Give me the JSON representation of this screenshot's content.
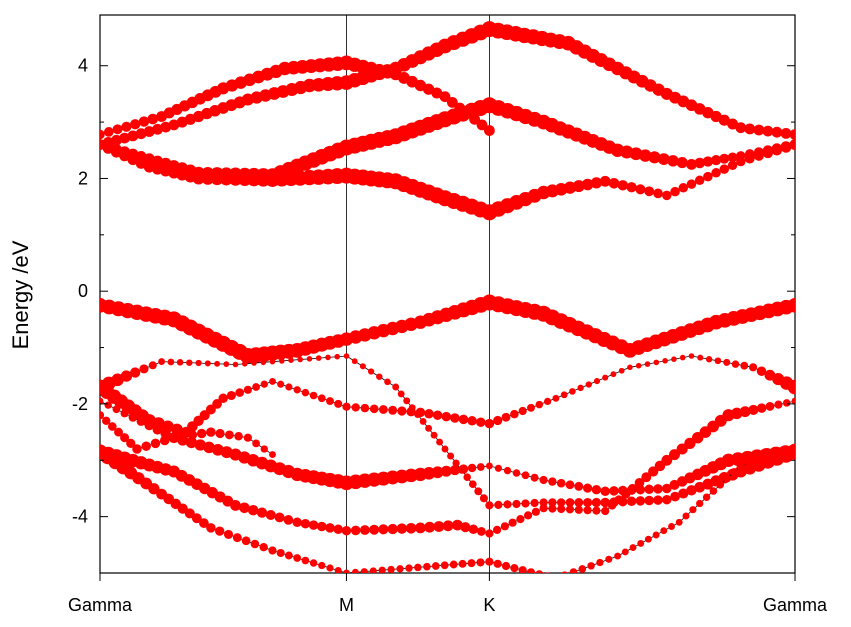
{
  "chart_data": {
    "type": "scatter",
    "title": "",
    "xlabel": "",
    "ylabel": "Energy /eV",
    "ylim": [
      -5,
      4.9
    ],
    "xlim": [
      0,
      2.82
    ],
    "y_ticks": [
      4,
      2,
      0,
      -2,
      -4
    ],
    "y_tick_labels": [
      "4",
      "2",
      "0",
      "-2",
      "-4"
    ],
    "x_ticks": [
      0,
      1.0,
      1.58,
      2.82
    ],
    "x_tick_labels": [
      "Gamma",
      "M",
      "K",
      "Gamma"
    ],
    "point_color": "#ff0000",
    "line_color": "#000000",
    "grid": false,
    "series": [
      {
        "label": "c1",
        "points": [
          [
            0,
            2.78
          ],
          [
            0.25,
            3.1
          ],
          [
            0.5,
            3.6
          ],
          [
            0.75,
            3.95
          ],
          [
            1.0,
            4.05
          ],
          [
            1.2,
            3.85
          ],
          [
            1.4,
            3.45
          ],
          [
            1.58,
            2.85
          ]
        ],
        "weights": [
          0.5,
          0.6,
          0.7,
          0.8,
          0.9,
          0.7,
          0.6,
          0.6
        ]
      },
      {
        "label": "c2",
        "points": [
          [
            0,
            2.6
          ],
          [
            0.3,
            2.95
          ],
          [
            0.6,
            3.4
          ],
          [
            0.85,
            3.65
          ],
          [
            1.0,
            3.7
          ],
          [
            1.2,
            3.95
          ],
          [
            1.4,
            4.35
          ],
          [
            1.58,
            4.65
          ],
          [
            1.9,
            4.4
          ],
          [
            2.3,
            3.5
          ],
          [
            2.6,
            2.9
          ],
          [
            2.82,
            2.78
          ]
        ],
        "weights": [
          0.6,
          0.6,
          0.7,
          0.8,
          0.9,
          0.8,
          0.9,
          1.0,
          0.9,
          0.7,
          0.6,
          0.6
        ]
      },
      {
        "label": "c3",
        "points": [
          [
            0,
            2.6
          ],
          [
            0.2,
            2.35
          ],
          [
            0.4,
            2.1
          ],
          [
            0.7,
            2.05
          ],
          [
            1.0,
            2.55
          ],
          [
            1.2,
            2.75
          ],
          [
            1.4,
            3.05
          ],
          [
            1.58,
            3.3
          ],
          [
            1.8,
            3.0
          ],
          [
            2.1,
            2.5
          ],
          [
            2.4,
            2.25
          ],
          [
            2.6,
            2.4
          ],
          [
            2.82,
            2.6
          ]
        ],
        "weights": [
          0.6,
          0.6,
          0.7,
          0.9,
          1.0,
          1.0,
          1.0,
          1.0,
          0.9,
          0.8,
          0.6,
          0.5,
          0.6
        ]
      },
      {
        "label": "c4",
        "points": [
          [
            0,
            2.6
          ],
          [
            0.2,
            2.2
          ],
          [
            0.4,
            2.0
          ],
          [
            0.7,
            1.98
          ],
          [
            1.0,
            2.05
          ],
          [
            1.2,
            1.95
          ],
          [
            1.4,
            1.65
          ],
          [
            1.58,
            1.4
          ],
          [
            1.8,
            1.75
          ],
          [
            2.05,
            1.95
          ],
          [
            2.3,
            1.7
          ],
          [
            2.6,
            2.3
          ],
          [
            2.82,
            2.6
          ]
        ],
        "weights": [
          0.6,
          0.6,
          0.7,
          0.9,
          1.0,
          1.0,
          1.0,
          1.0,
          0.8,
          0.6,
          0.5,
          0.5,
          0.6
        ]
      },
      {
        "label": "v1",
        "points": [
          [
            0,
            -0.25
          ],
          [
            0.3,
            -0.5
          ],
          [
            0.6,
            -1.15
          ],
          [
            0.8,
            -1.05
          ],
          [
            1.0,
            -0.85
          ],
          [
            1.3,
            -0.55
          ],
          [
            1.58,
            -0.2
          ],
          [
            1.8,
            -0.4
          ],
          [
            2.15,
            -1.05
          ],
          [
            2.5,
            -0.55
          ],
          [
            2.82,
            -0.25
          ]
        ],
        "weights": [
          0.9,
          1.0,
          1.0,
          0.9,
          0.8,
          0.8,
          1.0,
          1.0,
          0.9,
          0.9,
          0.9
        ]
      },
      {
        "label": "v2",
        "points": [
          [
            0,
            -1.7
          ],
          [
            0.25,
            -1.25
          ],
          [
            0.55,
            -1.3
          ],
          [
            1.0,
            -1.15
          ],
          [
            1.2,
            -1.7
          ],
          [
            1.4,
            -2.8
          ],
          [
            1.58,
            -3.8
          ],
          [
            1.8,
            -3.75
          ],
          [
            2.05,
            -3.75
          ],
          [
            2.3,
            -3.7
          ],
          [
            2.6,
            -3.2
          ],
          [
            2.82,
            -2.85
          ]
        ],
        "weights": [
          0.9,
          0.3,
          0.2,
          0.2,
          0.3,
          0.3,
          0.4,
          0.4,
          0.5,
          0.5,
          0.7,
          1.0
        ]
      },
      {
        "label": "v3",
        "points": [
          [
            0,
            -1.7
          ],
          [
            0.2,
            -2.3
          ],
          [
            0.35,
            -2.5
          ],
          [
            0.5,
            -1.9
          ],
          [
            0.7,
            -1.6
          ],
          [
            1.0,
            -2.05
          ],
          [
            1.3,
            -2.15
          ],
          [
            1.58,
            -2.35
          ],
          [
            1.85,
            -1.9
          ],
          [
            2.15,
            -1.35
          ],
          [
            2.4,
            -1.15
          ],
          [
            2.65,
            -1.35
          ],
          [
            2.82,
            -1.7
          ]
        ],
        "weights": [
          0.9,
          0.8,
          0.6,
          0.5,
          0.3,
          0.4,
          0.5,
          0.5,
          0.3,
          0.2,
          0.2,
          0.4,
          0.9
        ]
      },
      {
        "label": "v4",
        "points": [
          [
            0,
            -1.95
          ],
          [
            0.3,
            -2.6
          ],
          [
            0.55,
            -2.9
          ],
          [
            0.8,
            -3.25
          ],
          [
            1.0,
            -3.4
          ],
          [
            1.3,
            -3.25
          ],
          [
            1.58,
            -3.1
          ],
          [
            1.8,
            -3.35
          ],
          [
            2.05,
            -3.55
          ],
          [
            2.3,
            -3.5
          ],
          [
            2.55,
            -3.0
          ],
          [
            2.82,
            -2.85
          ]
        ],
        "weights": [
          0.3,
          0.6,
          0.7,
          0.8,
          0.9,
          0.8,
          0.3,
          0.4,
          0.5,
          0.5,
          0.8,
          1.0
        ]
      },
      {
        "label": "v5",
        "points": [
          [
            0,
            -2.85
          ],
          [
            0.3,
            -3.2
          ],
          [
            0.55,
            -3.8
          ],
          [
            0.8,
            -4.1
          ],
          [
            1.0,
            -4.25
          ],
          [
            1.3,
            -4.2
          ],
          [
            1.45,
            -4.15
          ],
          [
            1.58,
            -4.3
          ],
          [
            1.8,
            -3.85
          ],
          [
            2.05,
            -3.9
          ],
          [
            2.3,
            -3.0
          ],
          [
            2.55,
            -2.2
          ],
          [
            2.82,
            -1.95
          ]
        ],
        "weights": [
          0.9,
          0.7,
          0.6,
          0.5,
          0.5,
          0.6,
          0.6,
          0.4,
          0.4,
          0.4,
          0.6,
          0.7,
          0.3
        ]
      },
      {
        "label": "v6",
        "points": [
          [
            0,
            -2.85
          ],
          [
            0.25,
            -3.6
          ],
          [
            0.45,
            -4.2
          ],
          [
            0.7,
            -4.6
          ],
          [
            1.0,
            -5.0
          ],
          [
            1.58,
            -4.8
          ],
          [
            1.85,
            -5.1
          ],
          [
            2.1,
            -4.7
          ],
          [
            2.35,
            -4.1
          ],
          [
            2.6,
            -3.1
          ],
          [
            2.82,
            -2.85
          ]
        ],
        "weights": [
          0.9,
          0.6,
          0.5,
          0.4,
          0.3,
          0.4,
          0.4,
          0.3,
          0.3,
          0.4,
          0.9
        ]
      },
      {
        "label": "v7",
        "points": [
          [
            0,
            -2.2
          ],
          [
            0.15,
            -2.8
          ],
          [
            0.3,
            -2.6
          ],
          [
            0.45,
            -2.5
          ],
          [
            0.6,
            -2.6
          ],
          [
            0.7,
            -2.9
          ]
        ],
        "weights": [
          0.4,
          0.5,
          0.5,
          0.5,
          0.4,
          0.3
        ]
      }
    ]
  }
}
